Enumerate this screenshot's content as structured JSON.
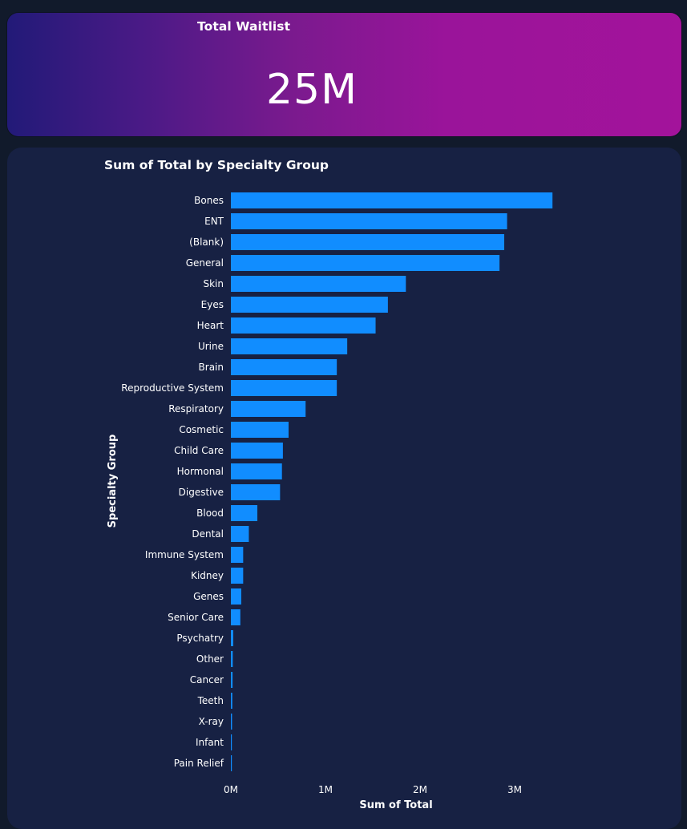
{
  "kpi": {
    "title": "Total Waitlist",
    "value": "25M"
  },
  "colors": {
    "bar": "#118dff",
    "background": "#111a2b",
    "panel": "#172143"
  },
  "chart_data": {
    "type": "bar",
    "orientation": "horizontal",
    "title": "Sum of Total by Specialty Group",
    "xlabel": "Sum of Total",
    "ylabel": "Specialty Group",
    "xlim": [
      0,
      3500000
    ],
    "xticks": [
      "0M",
      "1M",
      "2M",
      "3M"
    ],
    "grid": false,
    "categories": [
      "Bones",
      "ENT",
      "(Blank)",
      "General",
      "Skin",
      "Eyes",
      "Heart",
      "Urine",
      "Brain",
      "Reproductive System",
      "Respiratory",
      "Cosmetic",
      "Child Care",
      "Hormonal",
      "Digestive",
      "Blood",
      "Dental",
      "Immune System",
      "Kidney",
      "Genes",
      "Senior Care",
      "Psychatry",
      "Other",
      "Cancer",
      "Teeth",
      "X-ray",
      "Infant",
      "Pain Relief"
    ],
    "values": [
      3400000,
      2920000,
      2890000,
      2840000,
      1850000,
      1660000,
      1530000,
      1230000,
      1120000,
      1120000,
      790000,
      610000,
      550000,
      540000,
      520000,
      280000,
      190000,
      130000,
      130000,
      110000,
      100000,
      25000,
      20000,
      18000,
      15000,
      12000,
      10000,
      8000
    ]
  }
}
